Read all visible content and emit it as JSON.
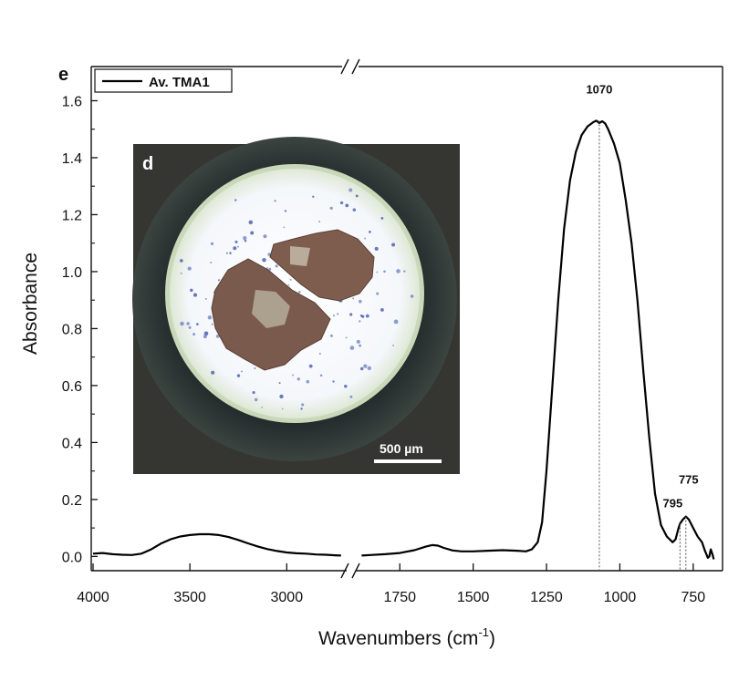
{
  "chart_data": {
    "type": "line",
    "panel_label": "e",
    "inset_panel_label": "d",
    "inset_scale_bar": "500 µm",
    "xlabel": "Wavenumbers (cm",
    "xlabel_sup": "-1",
    "xlabel_end": ")",
    "ylabel": "Absorbance",
    "y_range": [
      -0.05,
      1.72
    ],
    "y_ticks": [
      "0.0",
      "0.2",
      "0.4",
      "0.6",
      "0.8",
      "1.0",
      "1.2",
      "1.4",
      "1.6"
    ],
    "x_axis_broken": true,
    "x_segments": [
      {
        "range": [
          4000,
          2700
        ],
        "ticks": [
          "4000",
          "3500",
          "3000"
        ]
      },
      {
        "range": [
          1900,
          650
        ],
        "ticks": [
          "1750",
          "1500",
          "1250",
          "1000",
          "750"
        ]
      }
    ],
    "legend": [
      "Av. TMA1"
    ],
    "series": [
      {
        "name": "Av. TMA1",
        "points": [
          [
            4000,
            0.01
          ],
          [
            3950,
            0.012
          ],
          [
            3900,
            0.008
          ],
          [
            3850,
            0.006
          ],
          [
            3800,
            0.005
          ],
          [
            3750,
            0.01
          ],
          [
            3700,
            0.025
          ],
          [
            3650,
            0.045
          ],
          [
            3600,
            0.06
          ],
          [
            3550,
            0.07
          ],
          [
            3500,
            0.075
          ],
          [
            3450,
            0.078
          ],
          [
            3400,
            0.078
          ],
          [
            3350,
            0.075
          ],
          [
            3300,
            0.068
          ],
          [
            3250,
            0.058
          ],
          [
            3200,
            0.046
          ],
          [
            3150,
            0.035
          ],
          [
            3100,
            0.026
          ],
          [
            3050,
            0.019
          ],
          [
            3000,
            0.014
          ],
          [
            2950,
            0.011
          ],
          [
            2900,
            0.01
          ],
          [
            2850,
            0.007
          ],
          [
            2800,
            0.006
          ],
          [
            2750,
            0.004
          ],
          [
            2720,
            0.003
          ],
          [
            1880,
            0.003
          ],
          [
            1850,
            0.005
          ],
          [
            1800,
            0.008
          ],
          [
            1750,
            0.012
          ],
          [
            1700,
            0.022
          ],
          [
            1660,
            0.035
          ],
          [
            1640,
            0.04
          ],
          [
            1620,
            0.038
          ],
          [
            1600,
            0.03
          ],
          [
            1570,
            0.021
          ],
          [
            1540,
            0.018
          ],
          [
            1500,
            0.018
          ],
          [
            1450,
            0.02
          ],
          [
            1400,
            0.022
          ],
          [
            1350,
            0.02
          ],
          [
            1320,
            0.018
          ],
          [
            1300,
            0.025
          ],
          [
            1280,
            0.05
          ],
          [
            1265,
            0.12
          ],
          [
            1250,
            0.3
          ],
          [
            1230,
            0.6
          ],
          [
            1210,
            0.9
          ],
          [
            1190,
            1.15
          ],
          [
            1170,
            1.32
          ],
          [
            1150,
            1.42
          ],
          [
            1130,
            1.48
          ],
          [
            1110,
            1.51
          ],
          [
            1090,
            1.525
          ],
          [
            1080,
            1.53
          ],
          [
            1070,
            1.522
          ],
          [
            1060,
            1.528
          ],
          [
            1050,
            1.52
          ],
          [
            1040,
            1.5
          ],
          [
            1020,
            1.45
          ],
          [
            1000,
            1.38
          ],
          [
            980,
            1.25
          ],
          [
            960,
            1.1
          ],
          [
            940,
            0.9
          ],
          [
            920,
            0.65
          ],
          [
            900,
            0.42
          ],
          [
            880,
            0.22
          ],
          [
            860,
            0.11
          ],
          [
            840,
            0.07
          ],
          [
            820,
            0.05
          ],
          [
            810,
            0.06
          ],
          [
            800,
            0.1
          ],
          [
            795,
            0.115
          ],
          [
            785,
            0.13
          ],
          [
            775,
            0.14
          ],
          [
            765,
            0.13
          ],
          [
            750,
            0.1
          ],
          [
            735,
            0.07
          ],
          [
            720,
            0.05
          ],
          [
            710,
            0.02
          ],
          [
            700,
            -0.005
          ],
          [
            695,
            0.0
          ],
          [
            690,
            0.025
          ],
          [
            685,
            0.01
          ],
          [
            680,
            -0.01
          ]
        ]
      }
    ],
    "annotations": [
      {
        "label": "1070",
        "x": 1070,
        "y": 1.53
      },
      {
        "label": "795",
        "x": 795,
        "y": 0.115
      },
      {
        "label": "775",
        "x": 775,
        "y": 0.14
      }
    ]
  }
}
